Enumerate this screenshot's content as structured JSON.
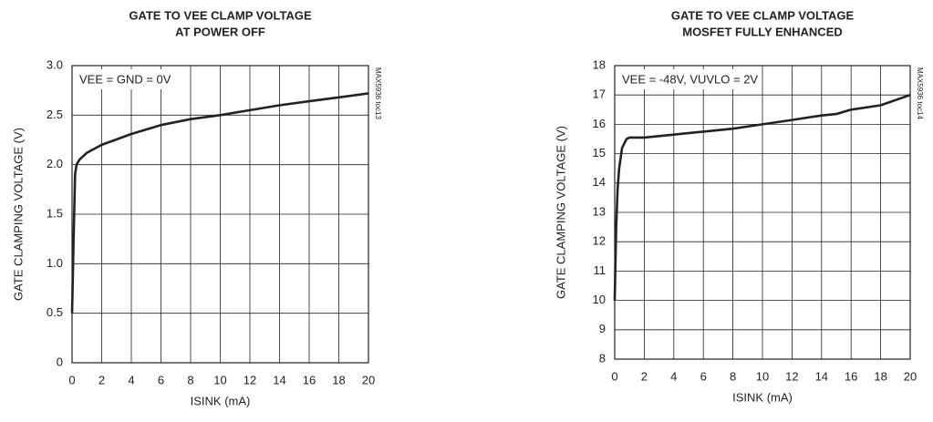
{
  "chart_data": [
    {
      "type": "line",
      "title": "GATE TO VEE CLAMP VOLTAGE",
      "subtitle": "AT POWER OFF",
      "annotation": "VEE = GND = 0V",
      "note": "MAX5936 toc13",
      "x_label": "ISINK (mA)",
      "y_label": "GATE CLAMPING VOLTAGE (V)",
      "xlim": [
        0,
        20
      ],
      "xticks": [
        0,
        2,
        4,
        6,
        8,
        10,
        12,
        14,
        16,
        18,
        20
      ],
      "ylim": [
        0,
        3
      ],
      "yticks": [
        0,
        0.5,
        {
          "value": 1,
          "label": "1.0"
        },
        1.5,
        {
          "value": 2,
          "label": "2.0"
        },
        2.5,
        {
          "value": 3,
          "label": "3.0"
        }
      ],
      "grid": true,
      "series": [
        {
          "color": "#222222",
          "x": [
            0,
            0.1,
            0.2,
            0.3,
            0.5,
            1,
            2,
            4,
            6,
            8,
            10,
            12,
            14,
            16,
            18,
            20
          ],
          "values": [
            0.5,
            1.2,
            1.9,
            2.0,
            2.05,
            2.12,
            2.2,
            2.31,
            2.4,
            2.46,
            2.5,
            2.55,
            2.6,
            2.64,
            2.68,
            2.72
          ]
        }
      ]
    },
    {
      "type": "line",
      "title": "GATE TO VEE CLAMP VOLTAGE",
      "subtitle": "MOSFET FULLY ENHANCED",
      "annotation": "VEE = -48V, VUVLO = 2V",
      "note": "MAX5936 toc14",
      "x_label": "ISINK (mA)",
      "y_label": "GATE CLAMPING VOLTAGE (V)",
      "xlim": [
        0,
        20
      ],
      "xticks": [
        0,
        2,
        4,
        6,
        8,
        10,
        12,
        14,
        16,
        18,
        20
      ],
      "ylim": [
        8,
        18
      ],
      "yticks": [
        8,
        9,
        10,
        11,
        12,
        13,
        14,
        15,
        16,
        17,
        18
      ],
      "grid": true,
      "series": [
        {
          "color": "#222222",
          "x": [
            0,
            0.1,
            0.2,
            0.3,
            0.5,
            0.8,
            1,
            2,
            4,
            6,
            8,
            10,
            12,
            14,
            15,
            16,
            18,
            20
          ],
          "values": [
            10,
            12.5,
            13.8,
            14.5,
            15.2,
            15.5,
            15.55,
            15.55,
            15.65,
            15.75,
            15.85,
            16.0,
            16.15,
            16.3,
            16.35,
            16.5,
            16.65,
            17.0
          ]
        }
      ]
    }
  ]
}
